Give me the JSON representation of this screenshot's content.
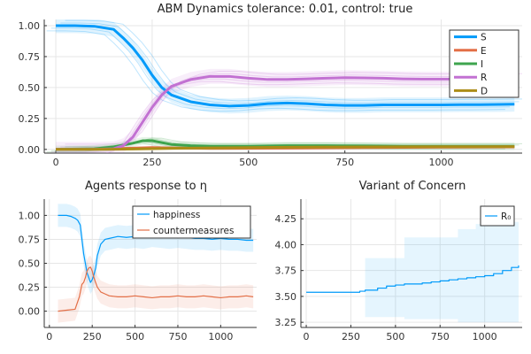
{
  "chart_data": [
    {
      "type": "line",
      "title": "ABM Dynamics tolerance: 0.01, control: true",
      "xlabel": "",
      "ylabel": "",
      "xlim": [
        -30,
        1210
      ],
      "ylim": [
        -0.03,
        1.05
      ],
      "xticks": [
        0,
        250,
        500,
        750,
        1000
      ],
      "yticks": [
        0.0,
        0.25,
        0.5,
        0.75,
        1.0
      ],
      "ytick_labels": [
        "0.00",
        "0.25",
        "0.50",
        "0.75",
        "1.00"
      ],
      "grid": true,
      "legend_position": "top-right",
      "series": [
        {
          "name": "S",
          "color": "#009AFA",
          "x": [
            0,
            50,
            100,
            150,
            175,
            200,
            225,
            250,
            275,
            300,
            350,
            400,
            450,
            500,
            550,
            600,
            650,
            700,
            750,
            800,
            850,
            900,
            950,
            1000,
            1050,
            1100,
            1150,
            1190
          ],
          "values": [
            1.0,
            1.0,
            0.995,
            0.97,
            0.9,
            0.82,
            0.72,
            0.6,
            0.5,
            0.44,
            0.385,
            0.36,
            0.35,
            0.355,
            0.37,
            0.375,
            0.37,
            0.36,
            0.355,
            0.355,
            0.36,
            0.36,
            0.36,
            0.36,
            0.362,
            0.362,
            0.363,
            0.365
          ],
          "band": 0.06
        },
        {
          "name": "E",
          "color": "#E36F47",
          "x": [
            0,
            100,
            200,
            250,
            300,
            400,
            600,
            800,
            1000,
            1190
          ],
          "values": [
            0.0,
            0.002,
            0.01,
            0.015,
            0.012,
            0.008,
            0.01,
            0.015,
            0.018,
            0.02
          ],
          "band": 0.01
        },
        {
          "name": "I",
          "color": "#3EA44E",
          "x": [
            0,
            100,
            150,
            200,
            225,
            250,
            275,
            300,
            350,
            400,
            500,
            600,
            700,
            800,
            900,
            1000,
            1100,
            1190
          ],
          "values": [
            0.0,
            0.005,
            0.02,
            0.05,
            0.07,
            0.07,
            0.055,
            0.04,
            0.03,
            0.025,
            0.025,
            0.03,
            0.03,
            0.028,
            0.025,
            0.025,
            0.025,
            0.025
          ],
          "band": 0.03
        },
        {
          "name": "R",
          "color": "#C271D2",
          "x": [
            0,
            100,
            150,
            175,
            200,
            225,
            250,
            275,
            300,
            350,
            400,
            450,
            500,
            550,
            600,
            650,
            700,
            750,
            800,
            850,
            900,
            950,
            1000,
            1050,
            1100,
            1150,
            1190
          ],
          "values": [
            0.0,
            0.0,
            0.005,
            0.03,
            0.1,
            0.22,
            0.34,
            0.44,
            0.51,
            0.565,
            0.59,
            0.59,
            0.575,
            0.565,
            0.565,
            0.57,
            0.575,
            0.58,
            0.578,
            0.575,
            0.57,
            0.568,
            0.568,
            0.568,
            0.568,
            0.568,
            0.57
          ],
          "band": 0.06
        },
        {
          "name": "D",
          "color": "#AC8D18",
          "x": [
            0,
            100,
            200,
            300,
            400,
            500,
            600,
            700,
            800,
            900,
            1000,
            1100,
            1190
          ],
          "values": [
            0.0,
            0.0,
            0.003,
            0.008,
            0.012,
            0.015,
            0.017,
            0.019,
            0.02,
            0.021,
            0.022,
            0.022,
            0.023
          ],
          "band": 0.008
        }
      ]
    },
    {
      "type": "line",
      "title": "Agents response to η",
      "xlabel": "",
      "ylabel": "",
      "xlim": [
        -30,
        1210
      ],
      "ylim": [
        -0.17,
        1.17
      ],
      "xticks": [
        0,
        250,
        500,
        750,
        1000
      ],
      "yticks": [
        0.0,
        0.25,
        0.5,
        0.75,
        1.0
      ],
      "ytick_labels": [
        "0.00",
        "0.25",
        "0.50",
        "0.75",
        "1.00"
      ],
      "grid": true,
      "legend_position": "top-right",
      "series": [
        {
          "name": "happiness",
          "color": "#009AFA",
          "x": [
            50,
            100,
            125,
            150,
            165,
            180,
            190,
            200,
            210,
            220,
            230,
            240,
            250,
            260,
            270,
            280,
            300,
            325,
            350,
            400,
            450,
            500,
            550,
            600,
            650,
            700,
            750,
            800,
            850,
            900,
            950,
            1000,
            1050,
            1100,
            1150,
            1190
          ],
          "values": [
            1.0,
            1.0,
            0.99,
            0.97,
            0.95,
            0.9,
            0.75,
            0.6,
            0.5,
            0.4,
            0.35,
            0.3,
            0.33,
            0.38,
            0.45,
            0.58,
            0.7,
            0.75,
            0.76,
            0.78,
            0.77,
            0.78,
            0.77,
            0.79,
            0.78,
            0.77,
            0.78,
            0.77,
            0.76,
            0.76,
            0.75,
            0.76,
            0.75,
            0.75,
            0.74,
            0.74
          ],
          "band": 0.12
        },
        {
          "name": "countermeasures",
          "color": "#E36F47",
          "x": [
            50,
            100,
            150,
            175,
            190,
            200,
            210,
            220,
            230,
            240,
            250,
            260,
            270,
            280,
            300,
            325,
            350,
            400,
            450,
            500,
            550,
            600,
            650,
            700,
            750,
            800,
            850,
            900,
            950,
            1000,
            1050,
            1100,
            1150,
            1190
          ],
          "values": [
            0.0,
            0.01,
            0.02,
            0.15,
            0.28,
            0.3,
            0.35,
            0.42,
            0.45,
            0.46,
            0.42,
            0.35,
            0.3,
            0.25,
            0.2,
            0.18,
            0.16,
            0.15,
            0.15,
            0.16,
            0.15,
            0.14,
            0.15,
            0.15,
            0.16,
            0.15,
            0.15,
            0.16,
            0.15,
            0.14,
            0.15,
            0.15,
            0.16,
            0.15
          ],
          "band": 0.12
        }
      ]
    },
    {
      "type": "line",
      "title": "Variant of Concern",
      "xlabel": "",
      "ylabel": "",
      "xlim": [
        -30,
        1210
      ],
      "ylim": [
        3.2,
        4.44
      ],
      "xticks": [
        0,
        250,
        500,
        750,
        1000
      ],
      "yticks": [
        3.25,
        3.5,
        3.75,
        4.0,
        4.25
      ],
      "ytick_labels": [
        "3.25",
        "3.50",
        "3.75",
        "4.00",
        "4.25"
      ],
      "grid": true,
      "legend_position": "top-right",
      "series": [
        {
          "name": "R₀",
          "color": "#009AFA",
          "x": [
            0,
            100,
            200,
            300,
            330,
            400,
            450,
            500,
            550,
            600,
            650,
            700,
            750,
            800,
            850,
            900,
            950,
            1000,
            1050,
            1100,
            1150,
            1190
          ],
          "values": [
            3.54,
            3.54,
            3.54,
            3.55,
            3.56,
            3.58,
            3.6,
            3.61,
            3.62,
            3.62,
            3.63,
            3.64,
            3.65,
            3.66,
            3.67,
            3.68,
            3.69,
            3.7,
            3.72,
            3.75,
            3.78,
            3.8
          ],
          "band_steps": [
            [
              0,
              3.54,
              3.54
            ],
            [
              330,
              3.3,
              3.87
            ],
            [
              550,
              3.28,
              4.07
            ],
            [
              850,
              3.25,
              4.15
            ],
            [
              950,
              3.25,
              4.2
            ],
            [
              1150,
              3.25,
              4.22
            ]
          ]
        }
      ]
    }
  ]
}
